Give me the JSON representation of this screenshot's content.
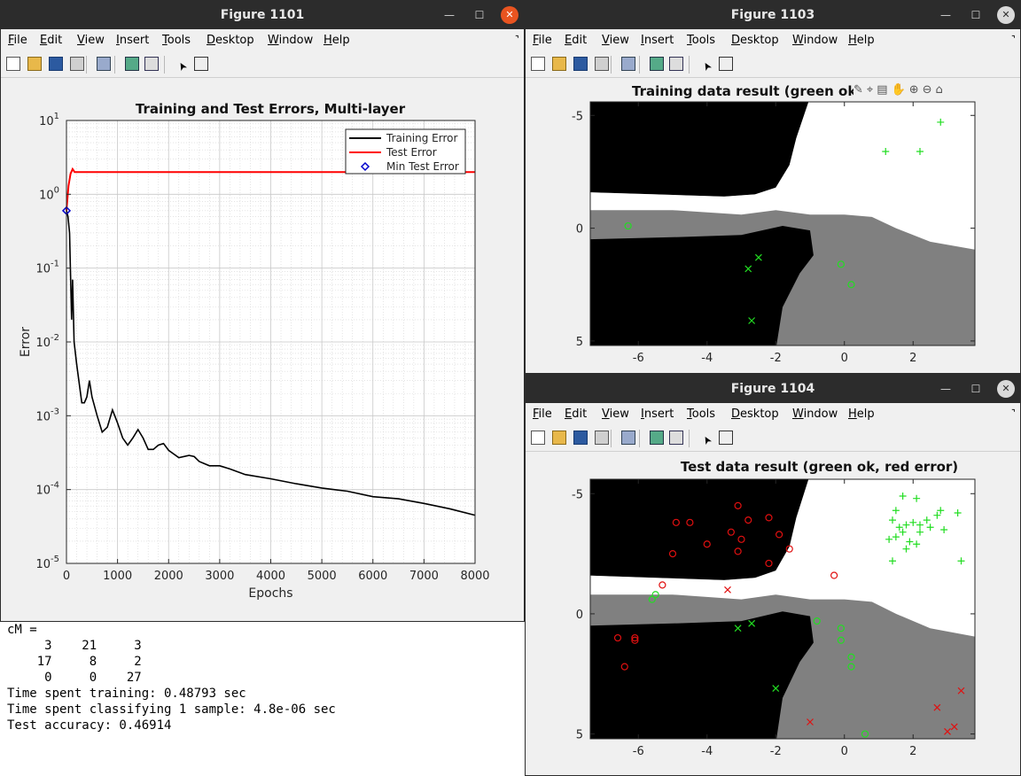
{
  "fig1101": {
    "title": "Figure 1101",
    "menus": [
      "File",
      "Edit",
      "View",
      "Insert",
      "Tools",
      "Desktop",
      "Window",
      "Help"
    ],
    "chart_data": {
      "type": "line",
      "title": "Training and Test Errors, Multi-layer",
      "xlabel": "Epochs",
      "ylabel": "Error",
      "xlim": [
        0,
        8000
      ],
      "ylim_log10": [
        -5,
        1
      ],
      "x_ticks": [
        "0",
        "1000",
        "2000",
        "3000",
        "4000",
        "5000",
        "6000",
        "7000",
        "8000"
      ],
      "y_tick_bases": [
        "10",
        "10",
        "10",
        "10",
        "10",
        "10",
        "10"
      ],
      "y_tick_exps": [
        "-5",
        "-4",
        "-3",
        "-2",
        "-1",
        "0",
        "1"
      ],
      "legend": [
        "Training Error",
        "Test Error",
        "Min Test Error"
      ],
      "legend_position": "top-right",
      "grid": "on (major and minor)",
      "colors": {
        "training": "#000000",
        "test": "#ff0000",
        "min": "#0000cc"
      },
      "series": [
        {
          "name": "Training Error",
          "x": [
            0,
            30,
            60,
            80,
            100,
            120,
            150,
            200,
            300,
            350,
            400,
            450,
            500,
            600,
            700,
            800,
            900,
            1000,
            1100,
            1200,
            1300,
            1400,
            1500,
            1600,
            1700,
            1800,
            1900,
            2000,
            2200,
            2400,
            2500,
            2600,
            2800,
            3000,
            3200,
            3500,
            4000,
            4500,
            5000,
            5500,
            6000,
            6500,
            7000,
            7500,
            8000
          ],
          "y": [
            0.6,
            0.5,
            0.3,
            0.08,
            0.02,
            0.07,
            0.01,
            0.005,
            0.0015,
            0.0015,
            0.0018,
            0.003,
            0.0018,
            0.001,
            0.0006,
            0.0007,
            0.0012,
            0.0008,
            0.0005,
            0.0004,
            0.0005,
            0.00065,
            0.0005,
            0.00035,
            0.00035,
            0.0004,
            0.00042,
            0.00034,
            0.00027,
            0.00029,
            0.00028,
            0.00024,
            0.00021,
            0.00021,
            0.00019,
            0.00016,
            0.00014,
            0.00012,
            0.000105,
            9.5e-05,
            8e-05,
            7.5e-05,
            6.5e-05,
            5.5e-05,
            4.5e-05
          ]
        },
        {
          "name": "Test Error",
          "x": [
            0,
            40,
            80,
            120,
            160,
            200,
            400,
            1000,
            2000,
            4000,
            6000,
            8000
          ],
          "y": [
            0.6,
            1.3,
            1.9,
            2.2,
            2.0,
            2.0,
            2.0,
            2.0,
            2.0,
            2.0,
            2.0,
            2.0
          ]
        },
        {
          "name": "Min Test Error",
          "x": [
            0
          ],
          "y": [
            0.6
          ]
        }
      ]
    }
  },
  "fig1103": {
    "title": "Figure 1103",
    "menus": [
      "File",
      "Edit",
      "View",
      "Insert",
      "Tools",
      "Desktop",
      "Window",
      "Help"
    ],
    "chart_data": {
      "type": "scatter",
      "title": "Training data result (green ok",
      "x_ticks": [
        "-6",
        "-4",
        "-2",
        "0",
        "2"
      ],
      "y_ticks": [
        "-5",
        "0",
        "5"
      ],
      "xlim": [
        -7.4,
        3.8
      ],
      "ylim_reversed": [
        -5.6,
        5.2
      ],
      "points_plus": [
        [
          2.8,
          -4.7
        ],
        [
          1.2,
          -3.4
        ],
        [
          2.2,
          -3.4
        ]
      ],
      "points_circle": [
        [
          -6.3,
          -0.1
        ],
        [
          -0.1,
          1.6
        ],
        [
          0.2,
          2.5
        ]
      ],
      "points_x_green": [
        [
          -2.5,
          1.3
        ],
        [
          -2.8,
          1.8
        ],
        [
          -2.7,
          4.1
        ]
      ]
    }
  },
  "fig1104": {
    "title": "Figure 1104",
    "menus": [
      "File",
      "Edit",
      "View",
      "Insert",
      "Tools",
      "Desktop",
      "Window",
      "Help"
    ],
    "chart_data": {
      "type": "scatter",
      "title": "Test data result (green ok, red error)",
      "x_ticks": [
        "-6",
        "-4",
        "-2",
        "0",
        "2"
      ],
      "y_ticks": [
        "-5",
        "0",
        "5"
      ],
      "xlim": [
        -7.4,
        3.8
      ],
      "ylim_reversed": [
        -5.6,
        5.2
      ],
      "green_plus": [
        [
          1.7,
          -4.9
        ],
        [
          2.1,
          -4.8
        ],
        [
          1.5,
          -4.3
        ],
        [
          1.4,
          -3.9
        ],
        [
          1.6,
          -3.6
        ],
        [
          1.8,
          -3.7
        ],
        [
          2.0,
          -3.8
        ],
        [
          2.2,
          -3.7
        ],
        [
          2.4,
          -3.9
        ],
        [
          2.7,
          -4.1
        ],
        [
          2.8,
          -4.3
        ],
        [
          3.3,
          -4.2
        ],
        [
          2.9,
          -3.5
        ],
        [
          2.5,
          -3.6
        ],
        [
          1.7,
          -3.4
        ],
        [
          1.5,
          -3.2
        ],
        [
          2.2,
          -3.4
        ],
        [
          1.9,
          -3.0
        ],
        [
          1.3,
          -3.1
        ],
        [
          2.1,
          -2.9
        ],
        [
          1.8,
          -2.7
        ],
        [
          1.4,
          -2.2
        ],
        [
          3.4,
          -2.2
        ]
      ],
      "green_circle": [
        [
          -5.5,
          -0.8
        ],
        [
          -5.6,
          -0.6
        ],
        [
          -0.8,
          0.3
        ],
        [
          -0.1,
          0.6
        ],
        [
          -0.1,
          1.1
        ],
        [
          0.2,
          1.8
        ],
        [
          0.2,
          2.2
        ],
        [
          0.6,
          5.0
        ]
      ],
      "green_x": [
        [
          -3.1,
          0.6
        ],
        [
          -2.7,
          0.4
        ],
        [
          -2.0,
          3.1
        ]
      ],
      "red_circle": [
        [
          -4.9,
          -3.8
        ],
        [
          -4.5,
          -3.8
        ],
        [
          -3.1,
          -4.5
        ],
        [
          -2.8,
          -3.9
        ],
        [
          -2.2,
          -4.0
        ],
        [
          -3.3,
          -3.4
        ],
        [
          -1.9,
          -3.3
        ],
        [
          -3.0,
          -3.1
        ],
        [
          -4.0,
          -2.9
        ],
        [
          -1.6,
          -2.7
        ],
        [
          -3.1,
          -2.6
        ],
        [
          -5.0,
          -2.5
        ],
        [
          -2.2,
          -2.1
        ],
        [
          -5.3,
          -1.2
        ],
        [
          -0.3,
          -1.6
        ],
        [
          -6.6,
          1.0
        ],
        [
          -6.1,
          1.1
        ],
        [
          -6.1,
          1.0
        ],
        [
          -6.4,
          2.2
        ]
      ],
      "red_x": [
        [
          -3.4,
          -1.0
        ],
        [
          -1.0,
          4.5
        ],
        [
          2.7,
          3.9
        ],
        [
          3.4,
          3.2
        ],
        [
          3.0,
          4.9
        ],
        [
          3.2,
          4.7
        ]
      ]
    }
  },
  "console": {
    "line1": "cM =",
    "line2": "",
    "line3": "     3    21     3",
    "line4": "    17     8     2",
    "line5": "     0     0    27",
    "line6": "",
    "line7": "Time spent training: 0.48793 sec",
    "line8": "Time spent classifying 1 sample: 4.8e-06 sec",
    "line9": "Test accuracy: 0.46914"
  }
}
